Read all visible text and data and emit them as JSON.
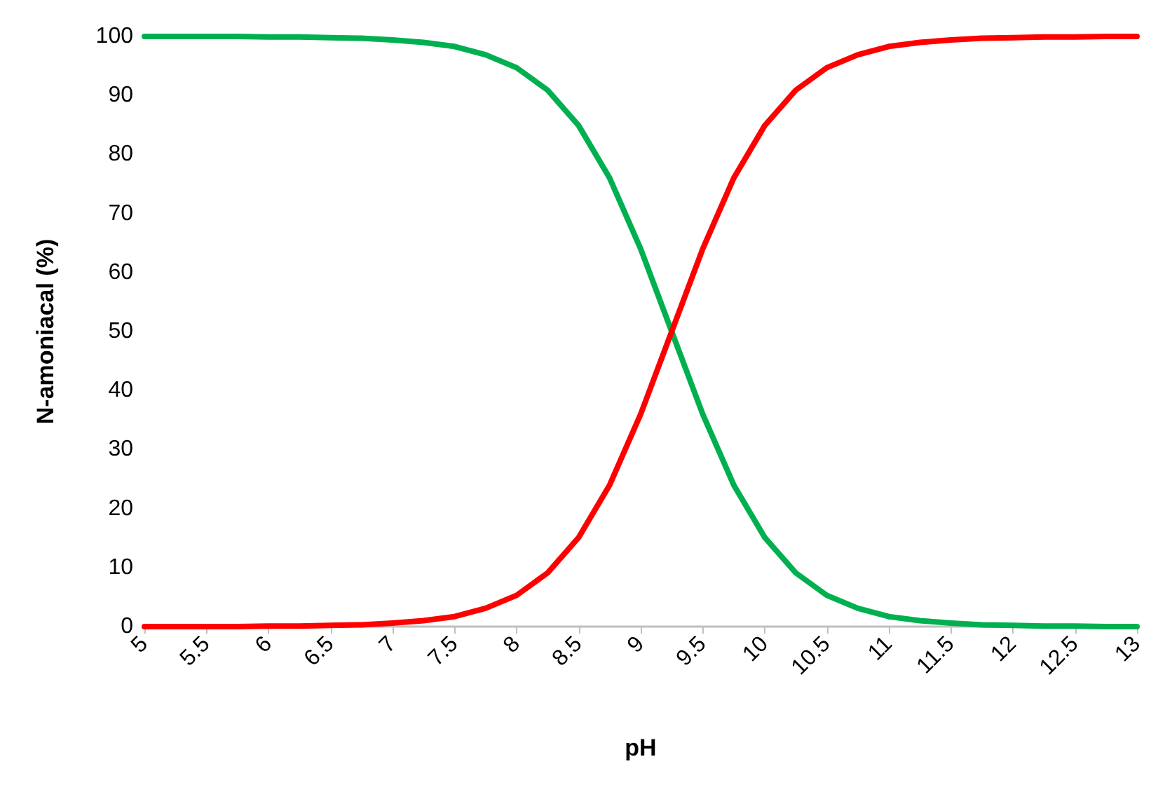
{
  "chart_data": {
    "type": "line",
    "xlabel": "pH",
    "ylabel": "N-amoniacal (%)",
    "x": [
      5,
      5.25,
      5.5,
      5.75,
      6,
      6.25,
      6.5,
      6.75,
      7,
      7.25,
      7.5,
      7.75,
      8,
      8.25,
      8.5,
      8.75,
      9,
      9.25,
      9.5,
      9.75,
      10,
      10.25,
      10.5,
      10.75,
      11,
      11.25,
      11.5,
      11.75,
      12,
      12.25,
      12.5,
      12.75,
      13
    ],
    "series": [
      {
        "color": "#00b050",
        "values": [
          100,
          100,
          100,
          100,
          99.9,
          99.9,
          99.8,
          99.7,
          99.4,
          99,
          98.3,
          96.9,
          94.7,
          90.9,
          84.9,
          76,
          64,
          50,
          36,
          24,
          15.1,
          9.1,
          5.3,
          3.1,
          1.7,
          1,
          0.6,
          0.3,
          0.2,
          0.1,
          0.1,
          0,
          0
        ]
      },
      {
        "color": "#ff0000",
        "values": [
          0,
          0,
          0,
          0,
          0.1,
          0.1,
          0.2,
          0.3,
          0.6,
          1,
          1.7,
          3.1,
          5.3,
          9.1,
          15.1,
          24,
          36,
          50,
          64,
          76,
          84.9,
          90.9,
          94.7,
          96.9,
          98.3,
          99,
          99.4,
          99.7,
          99.8,
          99.9,
          99.9,
          100,
          100
        ]
      }
    ],
    "xlim": [
      5,
      13
    ],
    "xticks": [
      5,
      5.5,
      6,
      6.5,
      7,
      7.5,
      8,
      8.5,
      9,
      9.5,
      10,
      10.5,
      11,
      11.5,
      12,
      12.5,
      13
    ],
    "ylim": [
      0,
      100
    ],
    "yticks": [
      0,
      10,
      20,
      30,
      40,
      50,
      60,
      70,
      80,
      90,
      100
    ],
    "grid": false,
    "marker": "none",
    "line_style": "solid"
  }
}
